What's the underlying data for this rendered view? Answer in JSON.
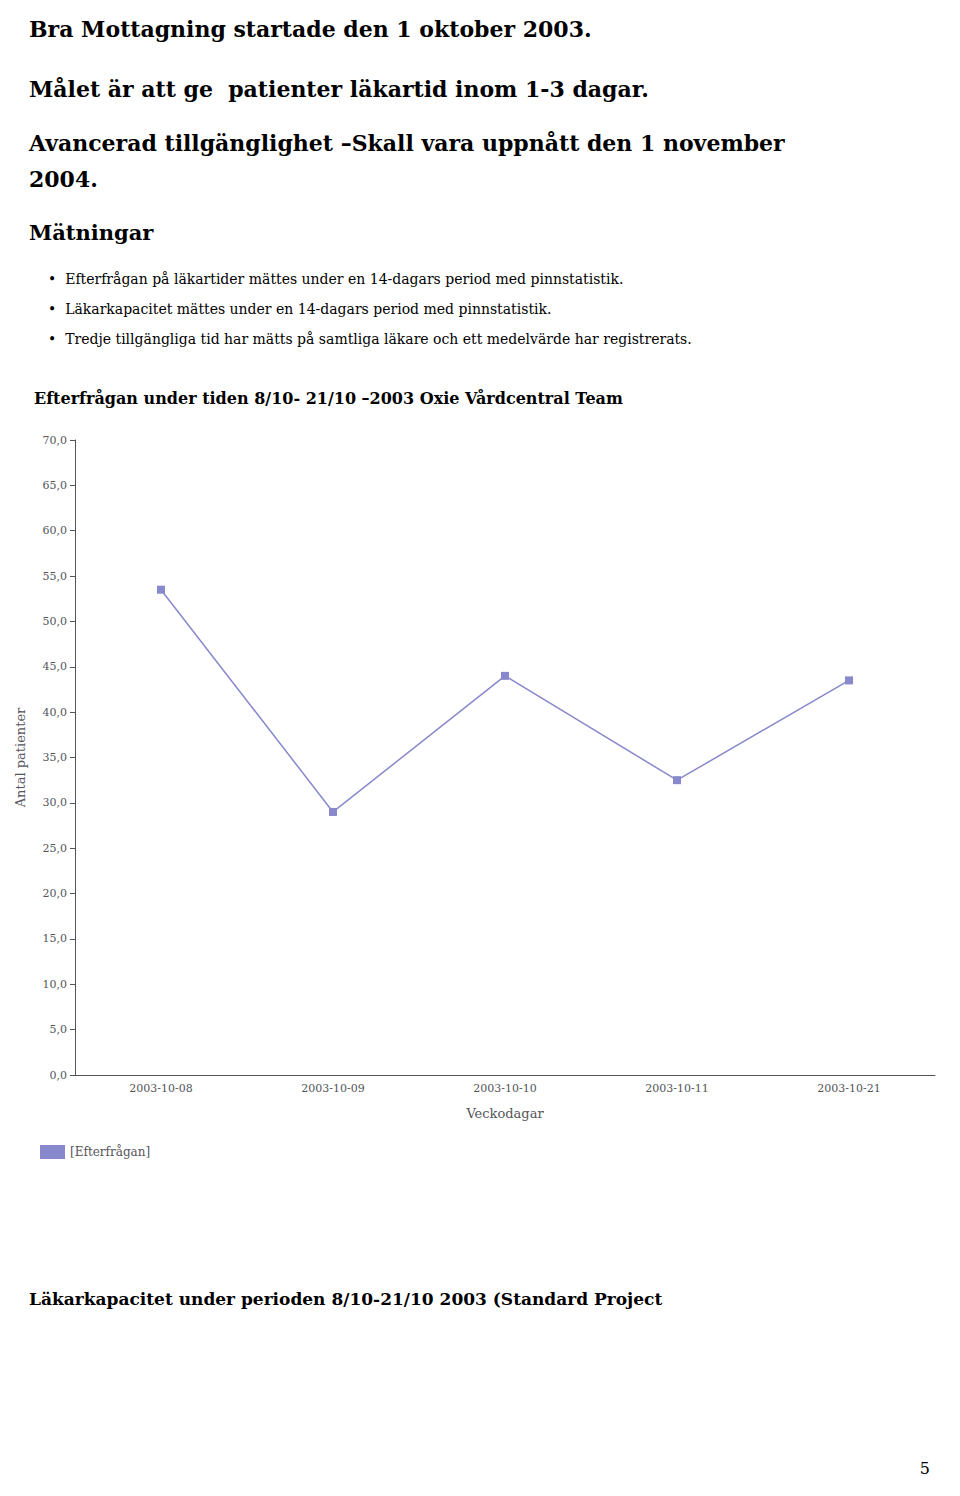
{
  "chart_data": {
    "type": "line",
    "title": "Efterfrågan under tiden 8/10- 21/10 –2003 Oxie Vårdcentral Team",
    "annotations": [
      "Bra Mottagning startade den 1 oktober 2003.",
      "Målet är att ge  patienter läkartid inom 1-3 dagar.",
      "Avancerad tillgänglighet –Skall vara uppnått den 1 november",
      "2004.",
      "Mätningar",
      "•  Efterfrågan på läkartider mättes under en 14-dagars period med pinnstatistik.",
      "•  Läkarkapacitet mättes under en 14-dagars period med pinnstatistik.",
      "•  Tredje tillgängliga tid har mätts på samtliga läkare och ett medelvärde har registrerats.",
      "Läkarkapacitet under perioden 8/10-21/10 2003 (Standard Project",
      "5"
    ],
    "x_label": "Veckodagar",
    "y_label": "Antal patienter",
    "categories": [
      "2003-10-08",
      "2003-10-09",
      "2003-10-10",
      "2003-10-11",
      "2003-10-21"
    ],
    "series": [
      {
        "name": "[Efterfrågan]",
        "color": "#8888cc",
        "marker": "square",
        "values": [
          53.5,
          29.0,
          44.0,
          32.5,
          43.5
        ]
      }
    ],
    "ylim": [
      0,
      70
    ],
    "yticks": [
      {
        "value": 0,
        "label": "0,0"
      },
      {
        "value": 5,
        "label": "5,0"
      },
      {
        "value": 10,
        "label": "10,0"
      },
      {
        "value": 15,
        "label": "15,0"
      },
      {
        "value": 20,
        "label": "20,0"
      },
      {
        "value": 25,
        "label": "25,0"
      },
      {
        "value": 30,
        "label": "30,0"
      },
      {
        "value": 35,
        "label": "35,0"
      },
      {
        "value": 40,
        "label": "40,0"
      },
      {
        "value": 45,
        "label": "45,0"
      },
      {
        "value": 50,
        "label": "50,0"
      },
      {
        "value": 55,
        "label": "55,0"
      },
      {
        "value": 60,
        "label": "60,0"
      },
      {
        "value": 65,
        "label": "65,0"
      },
      {
        "value": 70,
        "label": "70,0"
      }
    ],
    "grid": false,
    "legend": "lower left"
  }
}
